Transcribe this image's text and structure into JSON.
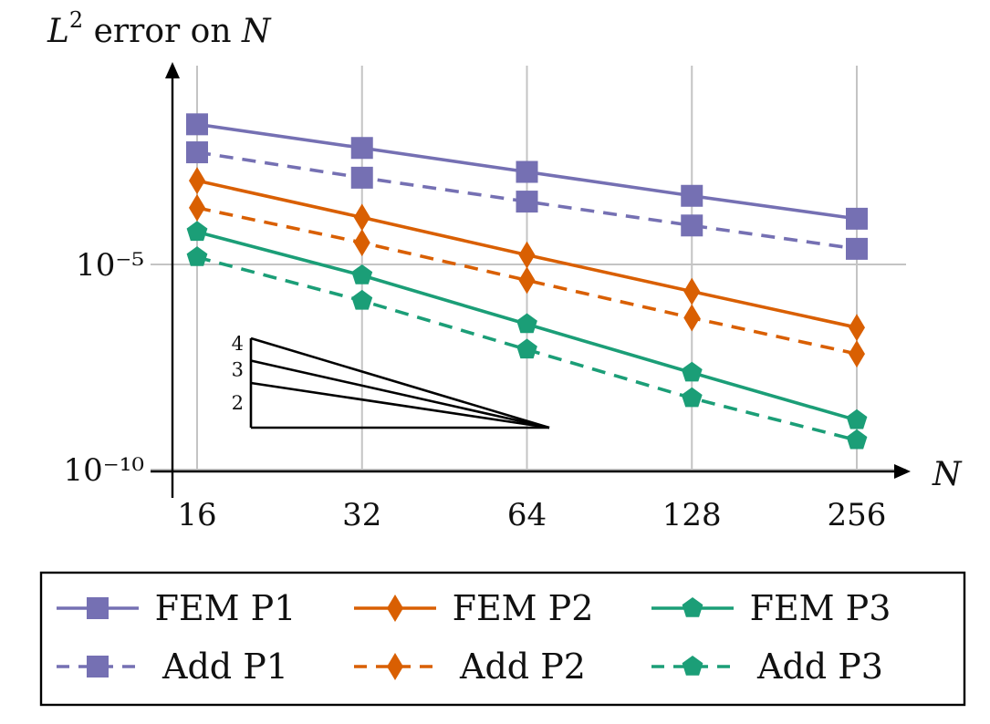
{
  "chart_data": {
    "type": "line",
    "title": "",
    "ylabel": "L² error on N",
    "xlabel": "N",
    "x": [
      16,
      32,
      64,
      128,
      256
    ],
    "x_tick_labels": [
      "16",
      "32",
      "64",
      "128",
      "256"
    ],
    "x_scale": "log2",
    "y_scale": "log",
    "y_ticks": [
      {
        "value": 1e-05,
        "label": "10⁻⁵"
      },
      {
        "value": 1e-10,
        "label": "10⁻¹⁰"
      }
    ],
    "ylim": [
      1e-10,
      0.3
    ],
    "grid": true,
    "legend_position": "bottom",
    "series": [
      {
        "name": "FEM P1",
        "color": "#7570b3",
        "dash": "solid",
        "marker": "square",
        "values": [
          0.026,
          0.0069,
          0.0018,
          0.00047,
          0.00013
        ]
      },
      {
        "name": "FEM P2",
        "color": "#d95f02",
        "dash": "solid",
        "marker": "diamond",
        "values": [
          0.0011,
          0.00014,
          1.7e-05,
          2.2e-06,
          2.9e-07
        ]
      },
      {
        "name": "FEM P3",
        "color": "#1b9e77",
        "dash": "solid",
        "marker": "pentagon",
        "values": [
          6.2e-05,
          5.4e-06,
          3.5e-07,
          2.3e-08,
          1.6e-09
        ]
      },
      {
        "name": "Add P1",
        "color": "#7570b3",
        "dash": "dashed",
        "marker": "square",
        "values": [
          0.0054,
          0.0013,
          0.00034,
          8.9e-05,
          2.4e-05
        ]
      },
      {
        "name": "Add P2",
        "color": "#d95f02",
        "dash": "dashed",
        "marker": "diamond",
        "values": [
          0.00024,
          3.4e-05,
          4.1e-06,
          5e-07,
          6.6e-08
        ]
      },
      {
        "name": "Add P3",
        "color": "#1b9e77",
        "dash": "dashed",
        "marker": "pentagon",
        "values": [
          1.5e-05,
          1.3e-06,
          8.4e-08,
          5.5e-09,
          5.2e-10
        ]
      }
    ],
    "annotations": {
      "slope_triangle_labels": [
        "4",
        "3",
        "2"
      ],
      "slopes": [
        4,
        3,
        2
      ]
    }
  }
}
